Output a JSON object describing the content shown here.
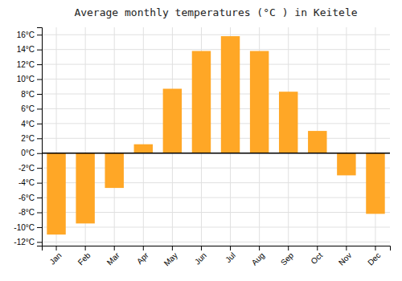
{
  "chart_data": {
    "type": "bar",
    "title": "Average monthly temperatures (°C ) in Keitele",
    "categories": [
      "Jan",
      "Feb",
      "Mar",
      "Apr",
      "May",
      "Jun",
      "Jul",
      "Aug",
      "Sep",
      "Oct",
      "Nov",
      "Dec"
    ],
    "values": [
      -11,
      -9.5,
      -4.7,
      1.2,
      8.7,
      13.8,
      15.8,
      13.8,
      8.3,
      3.0,
      -3.0,
      -8.2
    ],
    "color": "#FFA726",
    "ylim": [
      -12.5,
      17
    ],
    "yticks": [
      {
        "value": -12,
        "label": "-12°C"
      },
      {
        "value": -10,
        "label": "-10°C"
      },
      {
        "value": -8,
        "label": "-8°C"
      },
      {
        "value": -6,
        "label": "-6°C"
      },
      {
        "value": -4,
        "label": "-4°C"
      },
      {
        "value": -2,
        "label": "-2°C"
      },
      {
        "value": 0,
        "label": "0°C"
      },
      {
        "value": 2,
        "label": "2°C"
      },
      {
        "value": 4,
        "label": "4°C"
      },
      {
        "value": 6,
        "label": "6°C"
      },
      {
        "value": 8,
        "label": "8°C"
      },
      {
        "value": 10,
        "label": "10°C"
      },
      {
        "value": 12,
        "label": "12°C"
      },
      {
        "value": 14,
        "label": "14°C"
      },
      {
        "value": 16,
        "label": "16°C"
      }
    ],
    "grid": true
  }
}
